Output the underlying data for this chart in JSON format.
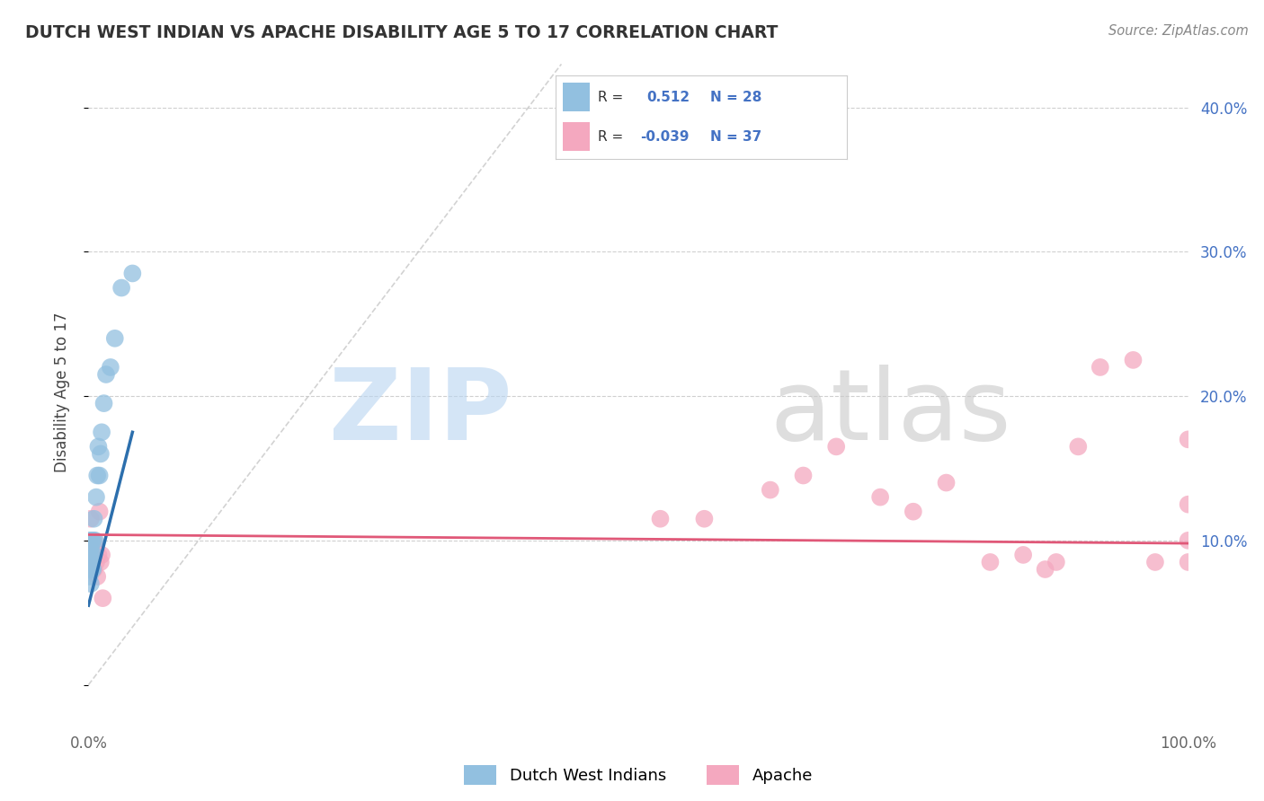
{
  "title": "DUTCH WEST INDIAN VS APACHE DISABILITY AGE 5 TO 17 CORRELATION CHART",
  "source": "Source: ZipAtlas.com",
  "ylabel": "Disability Age 5 to 17",
  "xlim": [
    0.0,
    1.0
  ],
  "ylim": [
    -0.025,
    0.43
  ],
  "xticks": [
    0.0,
    0.1,
    0.2,
    0.3,
    0.4,
    0.5,
    0.6,
    0.7,
    0.8,
    0.9,
    1.0
  ],
  "xticklabels": [
    "0.0%",
    "",
    "",
    "",
    "",
    "",
    "",
    "",
    "",
    "",
    "100.0%"
  ],
  "yticks": [
    0.0,
    0.1,
    0.2,
    0.3,
    0.4
  ],
  "yticklabels": [
    "",
    "10.0%",
    "20.0%",
    "30.0%",
    "40.0%"
  ],
  "blue_color": "#92c0e0",
  "pink_color": "#f4a8bf",
  "blue_line_color": "#2c6fad",
  "pink_line_color": "#e05878",
  "grid_color": "#d0d0d0",
  "dashed_color": "#c0c0c0",
  "dutch_x": [
    0.0008,
    0.001,
    0.001,
    0.0012,
    0.0015,
    0.002,
    0.002,
    0.0022,
    0.003,
    0.003,
    0.0035,
    0.004,
    0.004,
    0.005,
    0.005,
    0.006,
    0.007,
    0.008,
    0.009,
    0.01,
    0.011,
    0.012,
    0.014,
    0.016,
    0.02,
    0.024,
    0.03,
    0.04
  ],
  "dutch_y": [
    0.1,
    0.085,
    0.075,
    0.09,
    0.08,
    0.095,
    0.07,
    0.085,
    0.1,
    0.08,
    0.09,
    0.1,
    0.08,
    0.115,
    0.09,
    0.1,
    0.13,
    0.145,
    0.165,
    0.145,
    0.16,
    0.175,
    0.195,
    0.215,
    0.22,
    0.24,
    0.275,
    0.285
  ],
  "apache_x": [
    0.001,
    0.001,
    0.002,
    0.002,
    0.003,
    0.003,
    0.004,
    0.005,
    0.005,
    0.006,
    0.007,
    0.008,
    0.009,
    0.01,
    0.011,
    0.012,
    0.013,
    0.52,
    0.56,
    0.62,
    0.65,
    0.68,
    0.72,
    0.75,
    0.78,
    0.82,
    0.85,
    0.87,
    0.88,
    0.9,
    0.92,
    0.95,
    0.97,
    1.0,
    1.0,
    1.0,
    1.0
  ],
  "apache_y": [
    0.095,
    0.085,
    0.115,
    0.09,
    0.1,
    0.08,
    0.09,
    0.1,
    0.08,
    0.095,
    0.085,
    0.075,
    0.09,
    0.12,
    0.085,
    0.09,
    0.06,
    0.115,
    0.115,
    0.135,
    0.145,
    0.165,
    0.13,
    0.12,
    0.14,
    0.085,
    0.09,
    0.08,
    0.085,
    0.165,
    0.22,
    0.225,
    0.085,
    0.17,
    0.125,
    0.1,
    0.085
  ],
  "blue_line_x": [
    0.0,
    0.04
  ],
  "blue_line_y": [
    0.055,
    0.175
  ],
  "pink_line_x": [
    0.0,
    1.0
  ],
  "pink_line_y": [
    0.104,
    0.098
  ]
}
